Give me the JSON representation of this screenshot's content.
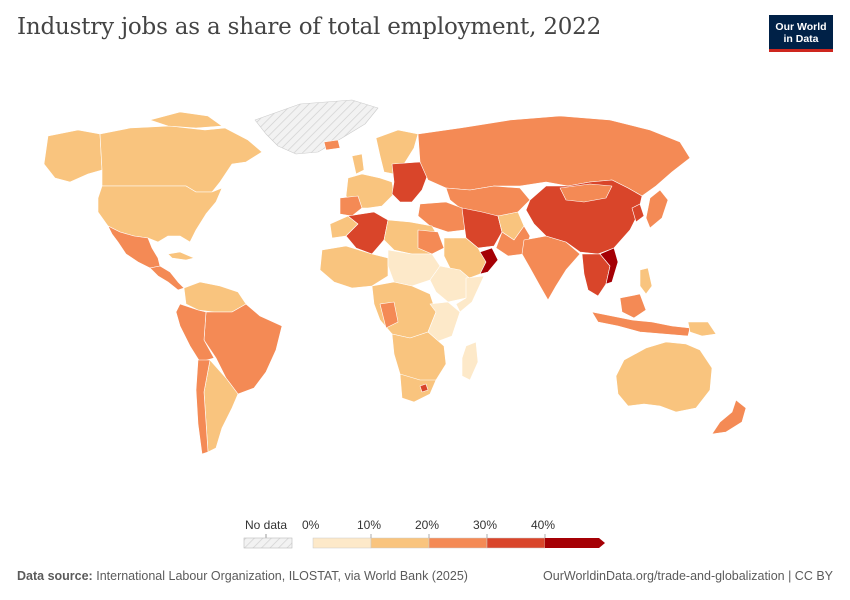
{
  "header": {
    "title": "Industry jobs as a share of total employment, 2022",
    "logo_line1": "Our World",
    "logo_line2": "in Data"
  },
  "legend": {
    "no_data_label": "No data",
    "ticks": [
      "0%",
      "10%",
      "20%",
      "30%",
      "40%"
    ],
    "bins": [
      {
        "range": "0–10%",
        "color": "#fde9c9"
      },
      {
        "range": "10–20%",
        "color": "#f9c47e"
      },
      {
        "range": "20–30%",
        "color": "#f48a55"
      },
      {
        "range": "30–40%",
        "color": "#d9452a"
      },
      {
        "range": ">40%",
        "color": "#a50005"
      }
    ],
    "no_data_color": "#e8e8e8"
  },
  "footer": {
    "source_label": "Data source:",
    "source_text": "International Labour Organization, ILOSTAT, via World Bank (2025)",
    "url": "OurWorldinData.org/trade-and-globalization | CC BY"
  },
  "map_regions": [
    {
      "name": "Canada",
      "bin": "10–20%"
    },
    {
      "name": "United States",
      "bin": "10–20%"
    },
    {
      "name": "Mexico",
      "bin": "20–30%"
    },
    {
      "name": "Greenland",
      "bin": "no data"
    },
    {
      "name": "Brazil",
      "bin": "20–30%"
    },
    {
      "name": "Argentina",
      "bin": "10–20%"
    },
    {
      "name": "Chile",
      "bin": "20–30%"
    },
    {
      "name": "Russia",
      "bin": "20–30%"
    },
    {
      "name": "China",
      "bin": "30–40%"
    },
    {
      "name": "India",
      "bin": "20–30%"
    },
    {
      "name": "Iran",
      "bin": "30–40%"
    },
    {
      "name": "Oman",
      "bin": ">40%"
    },
    {
      "name": "Algeria",
      "bin": "30–40%"
    },
    {
      "name": "Australia",
      "bin": "10–20%"
    },
    {
      "name": "Indonesia",
      "bin": "20–30%"
    },
    {
      "name": "Vietnam",
      "bin": "30–40%"
    }
  ]
}
